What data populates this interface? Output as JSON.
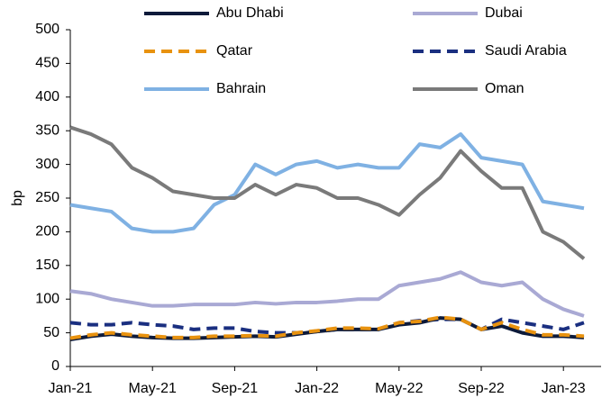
{
  "chart_data": {
    "type": "line",
    "ylabel": "bp",
    "categories": [
      "Jan-21",
      null,
      null,
      null,
      "May-21",
      null,
      null,
      null,
      "Sep-21",
      null,
      null,
      null,
      "Jan-22",
      null,
      null,
      null,
      "May-22",
      null,
      null,
      null,
      "Sep-22",
      null,
      null,
      null,
      "Jan-23",
      null
    ],
    "series": [
      {
        "name": "Bahrain",
        "color": "#7fb1e3",
        "dashed": false,
        "values": [
          240,
          235,
          230,
          205,
          200,
          200,
          205,
          240,
          255,
          300,
          285,
          300,
          305,
          295,
          300,
          295,
          295,
          330,
          325,
          345,
          310,
          305,
          300,
          245,
          240,
          235
        ]
      },
      {
        "name": "Oman",
        "color": "#7a7a7a",
        "dashed": false,
        "values": [
          355,
          345,
          330,
          295,
          280,
          260,
          255,
          250,
          250,
          270,
          255,
          270,
          265,
          250,
          250,
          240,
          225,
          255,
          280,
          320,
          290,
          265,
          265,
          200,
          185,
          160
        ]
      },
      {
        "name": "Dubai",
        "color": "#a9a9d4",
        "dashed": false,
        "values": [
          112,
          108,
          100,
          95,
          90,
          90,
          92,
          92,
          92,
          95,
          93,
          95,
          95,
          97,
          100,
          100,
          120,
          125,
          130,
          140,
          125,
          120,
          125,
          100,
          85,
          75
        ]
      },
      {
        "name": "Saudi Arabia",
        "color": "#1a2f80",
        "dashed": true,
        "values": [
          65,
          62,
          62,
          65,
          62,
          60,
          55,
          57,
          57,
          52,
          50,
          50,
          52,
          55,
          55,
          55,
          65,
          68,
          70,
          70,
          55,
          70,
          65,
          60,
          55,
          65
        ]
      },
      {
        "name": "Abu Dhabi",
        "color": "#0d1a3a",
        "dashed": false,
        "values": [
          40,
          45,
          48,
          45,
          43,
          42,
          42,
          43,
          44,
          45,
          44,
          48,
          52,
          55,
          55,
          55,
          62,
          65,
          72,
          70,
          55,
          60,
          50,
          45,
          45,
          43
        ]
      },
      {
        "name": "Qatar",
        "color": "#e8920f",
        "dashed": true,
        "values": [
          42,
          47,
          50,
          47,
          45,
          43,
          43,
          45,
          45,
          46,
          45,
          50,
          53,
          57,
          57,
          56,
          65,
          67,
          73,
          70,
          55,
          65,
          55,
          47,
          47,
          45
        ]
      }
    ],
    "ylim": [
      0,
      500
    ],
    "yticks": [
      0,
      50,
      100,
      150,
      200,
      250,
      300,
      350,
      400,
      450,
      500
    ],
    "grid": false
  }
}
